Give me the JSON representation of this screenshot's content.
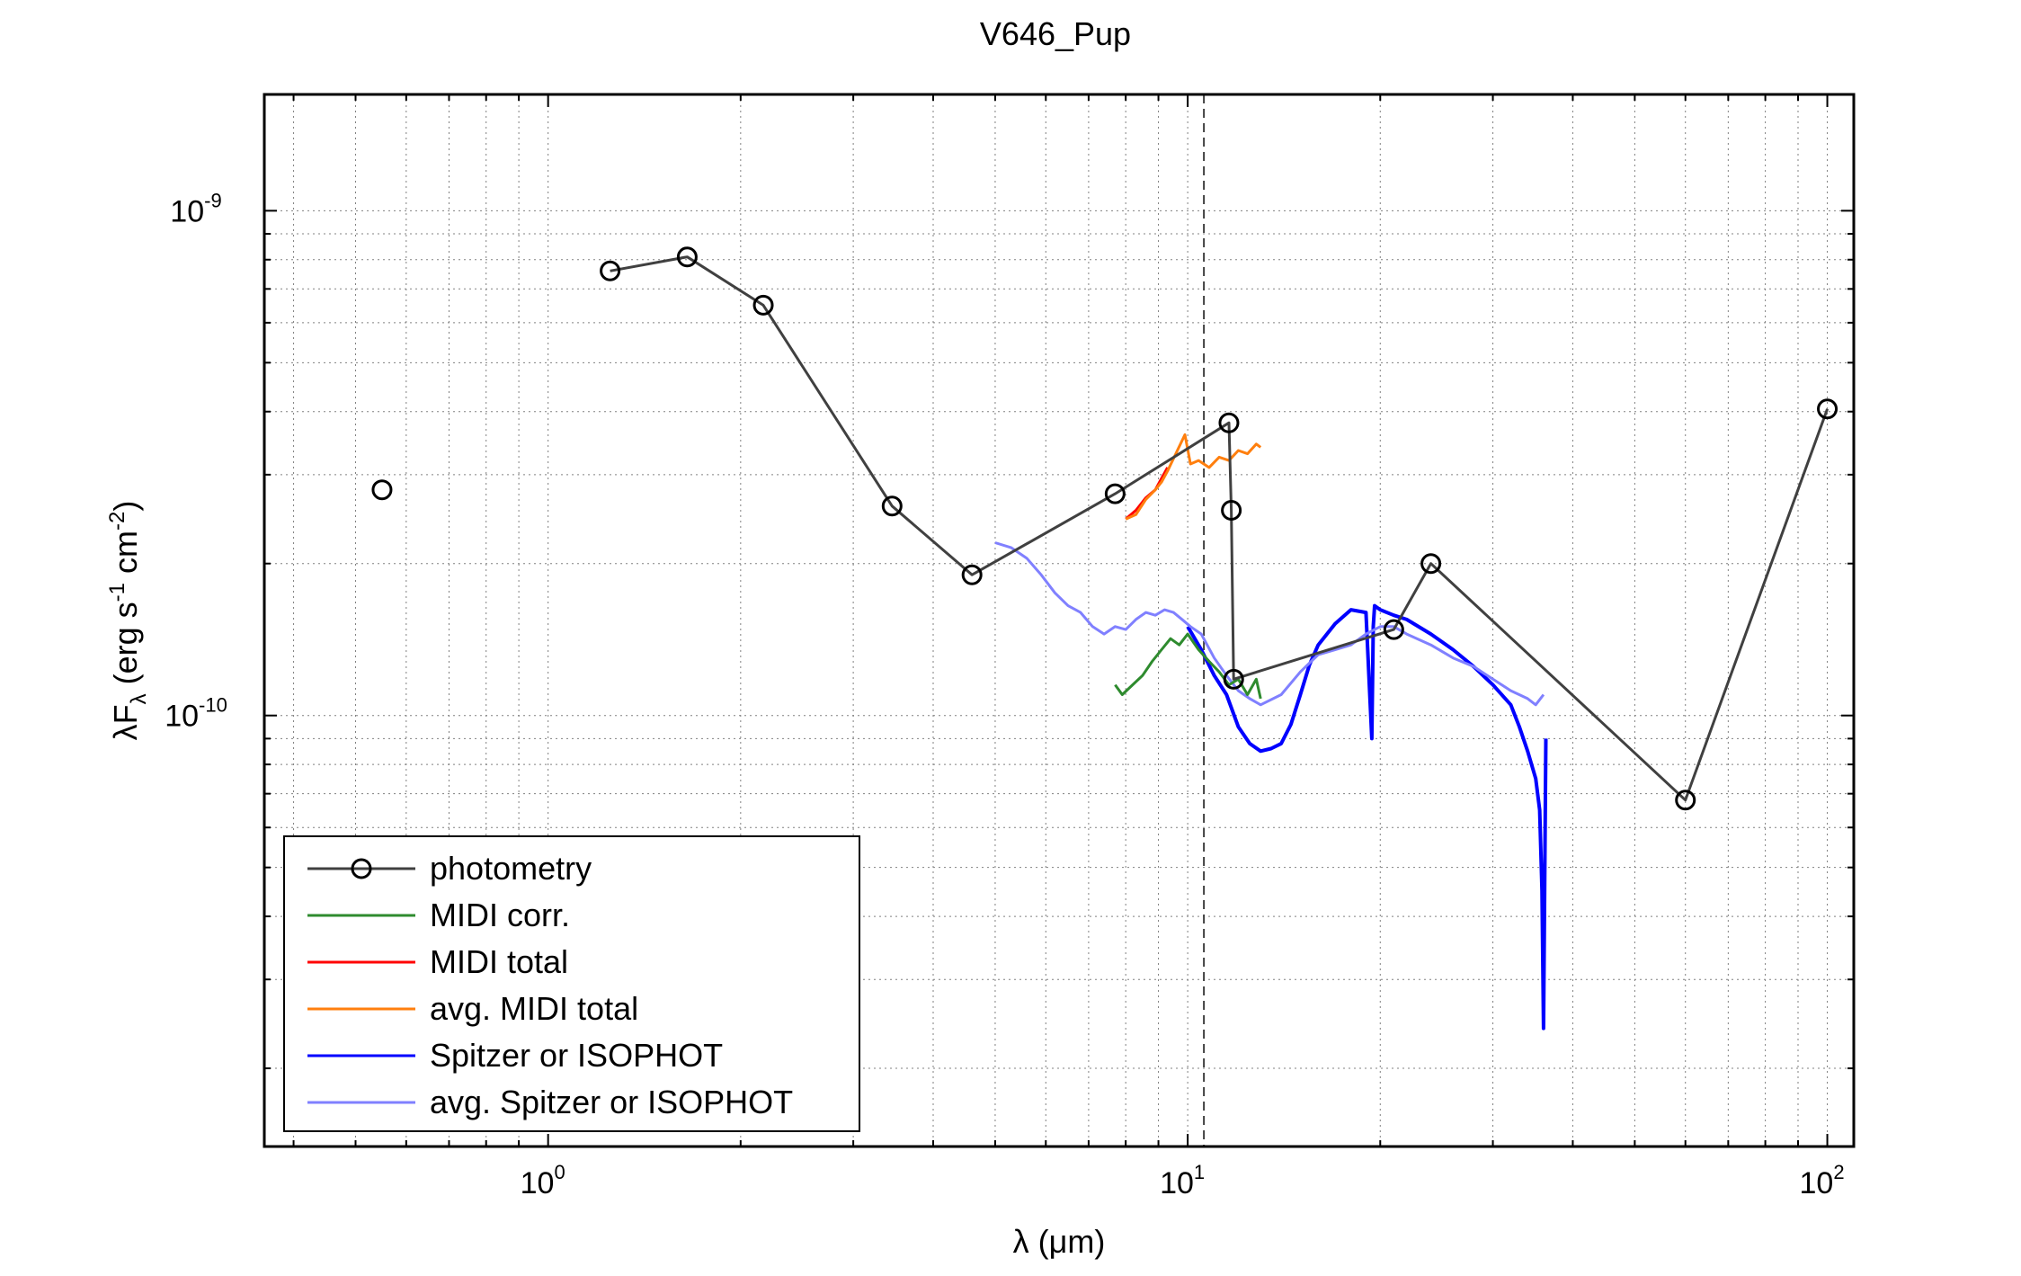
{
  "chart_data": {
    "type": "line",
    "title": "V646_Pup",
    "xlabel_main": "λ (",
    "xlabel_unit": "μm",
    "xlabel_close": ")",
    "ylabel_pre": "λF",
    "ylabel_sub": "λ",
    "ylabel_units": " (erg s",
    "ylabel_exp1": "-1",
    "ylabel_mid": " cm",
    "ylabel_exp2": "-2",
    "ylabel_close": ")",
    "x_scale": "log",
    "y_scale": "log",
    "xlim": [
      0.36,
      110
    ],
    "ylim": [
      1.4e-11,
      1.7e-09
    ],
    "grid": true,
    "legend_position": "bottom-left",
    "x_ticks": [
      {
        "value": 1,
        "base": "10",
        "exp": "0"
      },
      {
        "value": 10,
        "base": "10",
        "exp": "1"
      },
      {
        "value": 100,
        "base": "10",
        "exp": "2"
      }
    ],
    "y_ticks": [
      {
        "value": 1e-10,
        "base": "10",
        "exp": "-10"
      },
      {
        "value": 1e-09,
        "base": "10",
        "exp": "-9"
      }
    ],
    "vline_x": 10.6,
    "colors": {
      "photometry": "#404040",
      "midi_corr": "#2e8b2e",
      "midi_total": "#ff0000",
      "avg_midi_total": "#ff7f0e",
      "spitzer": "#0000ff",
      "avg_spitzer": "#8080ff"
    },
    "series": [
      {
        "name": "photometry",
        "key": "photometry",
        "markers": true,
        "isolated_points": [
          [
            0.55,
            2.8e-10
          ]
        ],
        "x": [
          1.25,
          1.65,
          2.17,
          3.45,
          4.6,
          7.7,
          11.6,
          11.7,
          11.8,
          21.0,
          24.0,
          60.0,
          100.0
        ],
        "y": [
          7.6e-10,
          8.1e-10,
          6.5e-10,
          2.6e-10,
          1.9e-10,
          2.75e-10,
          3.8e-10,
          2.55e-10,
          1.18e-10,
          1.48e-10,
          2e-10,
          6.8e-11,
          4.05e-10
        ]
      },
      {
        "name": "MIDI corr.",
        "key": "midi_corr",
        "x": [
          7.7,
          7.9,
          8.2,
          8.5,
          8.8,
          9.1,
          9.4,
          9.7,
          10.0,
          10.4,
          10.8,
          11.2,
          11.6,
          12.0,
          12.4,
          12.8,
          13.0
        ],
        "y": [
          1.15e-10,
          1.1e-10,
          1.15e-10,
          1.2e-10,
          1.28e-10,
          1.35e-10,
          1.42e-10,
          1.38e-10,
          1.45e-10,
          1.35e-10,
          1.28e-10,
          1.22e-10,
          1.15e-10,
          1.18e-10,
          1.1e-10,
          1.18e-10,
          1.08e-10
        ]
      },
      {
        "name": "MIDI total",
        "key": "midi_total",
        "x": [
          8.0,
          8.3,
          8.6,
          8.9,
          9.1,
          9.3
        ],
        "y": [
          2.45e-10,
          2.55e-10,
          2.7e-10,
          2.8e-10,
          2.95e-10,
          3.1e-10
        ]
      },
      {
        "name": "avg. MIDI total",
        "key": "avg_midi_total",
        "x": [
          8.0,
          8.3,
          8.6,
          8.9,
          9.1,
          9.3,
          9.9,
          10.1,
          10.4,
          10.8,
          11.2,
          11.6,
          12.0,
          12.4,
          12.8,
          13.0
        ],
        "y": [
          2.45e-10,
          2.5e-10,
          2.68e-10,
          2.8e-10,
          2.9e-10,
          3.05e-10,
          3.6e-10,
          3.15e-10,
          3.2e-10,
          3.1e-10,
          3.25e-10,
          3.2e-10,
          3.35e-10,
          3.3e-10,
          3.45e-10,
          3.4e-10
        ]
      },
      {
        "name": "Spitzer or ISOPHOT",
        "key": "spitzer",
        "x": [
          10.0,
          10.5,
          11.0,
          11.5,
          12.0,
          12.5,
          13.0,
          13.5,
          14.0,
          14.5,
          15.0,
          15.5,
          16.0,
          17.0,
          18.0,
          19.0,
          19.4,
          19.5,
          19.6,
          20.0,
          21.0,
          22.0,
          24.0,
          26.0,
          28.0,
          30.0,
          32.0,
          33.0,
          34.0,
          35.0,
          35.5,
          35.8,
          36.0,
          36.3
        ],
        "y": [
          1.5e-10,
          1.35e-10,
          1.2e-10,
          1.1e-10,
          9.5e-11,
          8.8e-11,
          8.5e-11,
          8.6e-11,
          8.8e-11,
          9.6e-11,
          1.1e-10,
          1.26e-10,
          1.38e-10,
          1.52e-10,
          1.62e-10,
          1.6e-10,
          9e-11,
          1.5e-10,
          1.65e-10,
          1.62e-10,
          1.58e-10,
          1.55e-10,
          1.45e-10,
          1.35e-10,
          1.25e-10,
          1.15e-10,
          1.05e-10,
          9.5e-11,
          8.5e-11,
          7.5e-11,
          6.5e-11,
          4.5e-11,
          2.4e-11,
          9e-11
        ]
      },
      {
        "name": "avg. Spitzer or ISOPHOT",
        "key": "avg_spitzer",
        "x": [
          5.0,
          5.3,
          5.6,
          5.9,
          6.2,
          6.5,
          6.8,
          7.1,
          7.4,
          7.7,
          8.0,
          8.3,
          8.6,
          8.9,
          9.2,
          9.5,
          9.8,
          10.1,
          10.5,
          11.0,
          11.5,
          12.0,
          12.5,
          13.0,
          14.0,
          15.0,
          16.0,
          17.0,
          18.0,
          19.0,
          20.0,
          21.0,
          22.0,
          24.0,
          26.0,
          28.0,
          30.0,
          32.0,
          34.0,
          35.0,
          36.0
        ],
        "y": [
          2.2e-10,
          2.15e-10,
          2.05e-10,
          1.9e-10,
          1.75e-10,
          1.65e-10,
          1.6e-10,
          1.5e-10,
          1.45e-10,
          1.5e-10,
          1.48e-10,
          1.55e-10,
          1.6e-10,
          1.58e-10,
          1.62e-10,
          1.6e-10,
          1.55e-10,
          1.5e-10,
          1.45e-10,
          1.3e-10,
          1.2e-10,
          1.12e-10,
          1.08e-10,
          1.05e-10,
          1.1e-10,
          1.22e-10,
          1.32e-10,
          1.35e-10,
          1.38e-10,
          1.45e-10,
          1.5e-10,
          1.5e-10,
          1.45e-10,
          1.38e-10,
          1.3e-10,
          1.25e-10,
          1.18e-10,
          1.12e-10,
          1.08e-10,
          1.05e-10,
          1.1e-10
        ]
      }
    ]
  }
}
